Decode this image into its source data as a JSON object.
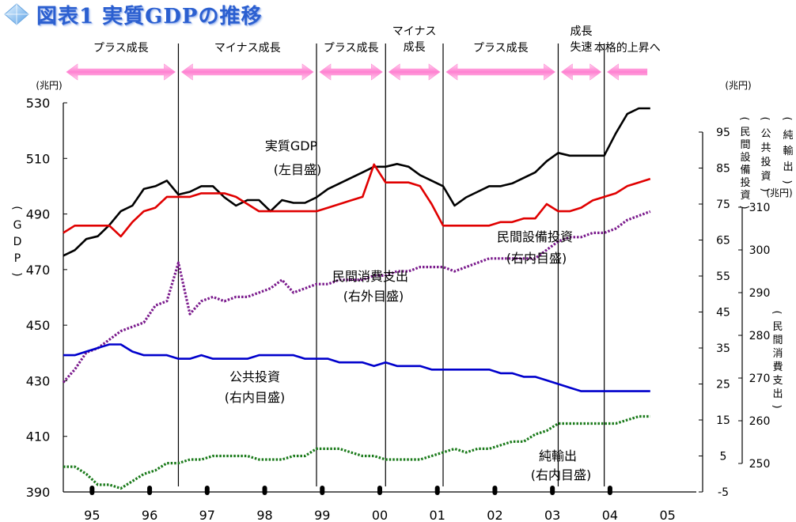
{
  "title": "図表1 実質GDPの推移",
  "phases": [
    {
      "label": "プラス成長",
      "dir": "both",
      "x0": 1995.0,
      "x1": 1997.0
    },
    {
      "label": "マイナス成長",
      "dir": "both",
      "x0": 1997.0,
      "x1": 1999.4
    },
    {
      "label": "プラス成長",
      "dir": "both",
      "x0": 1999.4,
      "x1": 2000.6
    },
    {
      "label": "マイナス\n成長",
      "dir": "both",
      "x0": 2000.6,
      "x1": 2001.6
    },
    {
      "label": "プラス成長",
      "dir": "both",
      "x0": 2001.6,
      "x1": 2003.6
    },
    {
      "label": "成長\n失速",
      "dir": "both",
      "x0": 2003.6,
      "x1": 2004.4
    },
    {
      "label": "本格的上昇へ",
      "dir": "left",
      "x0": 2004.4,
      "x1": 2005.2
    }
  ],
  "series_labels": [
    {
      "name": "gdp",
      "text": "実質GDP",
      "sub": "(左目盛)"
    },
    {
      "name": "consumption",
      "text": "民間消費支出",
      "sub": "(右外目盛)"
    },
    {
      "name": "investment",
      "text": "民間設備投資",
      "sub": "(右内目盛)"
    },
    {
      "name": "public",
      "text": "公共投資",
      "sub": "(右内目盛)"
    },
    {
      "name": "netexport",
      "text": "純輸出",
      "sub": "(右内目盛)"
    }
  ],
  "axes": {
    "left_unit": "(兆円)",
    "left_title": "(GDP)",
    "right_unit": "(兆円)",
    "right_titles": [
      "(民間設備投資)",
      "(公共投資)",
      "(純輸出)"
    ],
    "outer_unit": "(兆円)",
    "outer_title": "(民間消費支出)",
    "left_ticks": [
      "390",
      "410",
      "430",
      "450",
      "470",
      "490",
      "510",
      "530"
    ],
    "right_ticks": [
      "-5",
      "5",
      "15",
      "25",
      "35",
      "45",
      "55",
      "65",
      "75",
      "85",
      "95"
    ],
    "outer_ticks": [
      "250",
      "260",
      "270",
      "280",
      "290",
      "300",
      "310"
    ],
    "x_ticks": [
      "95",
      "96",
      "97",
      "98",
      "99",
      "00",
      "01",
      "02",
      "03",
      "04",
      "05"
    ]
  },
  "chart_data": {
    "type": "line",
    "title": "図表1 実質GDPの推移",
    "x_unit": "year",
    "xlim": [
      1995.0,
      2006.0
    ],
    "ylim_left": [
      390,
      530
    ],
    "ylim_right": [
      -5,
      95
    ],
    "ylim_outer": [
      250,
      310
    ],
    "grid": false,
    "legend": "inline labels",
    "phase_boundaries": [
      1997.0,
      1999.4,
      2000.6,
      2001.6,
      2003.6,
      2004.4
    ],
    "x_markers": [
      1995.5,
      1996.5,
      1997.5,
      1998.5,
      1999.5,
      2000.5,
      2001.5,
      2002.5,
      2003.5,
      2004.5
    ],
    "colors": {
      "gdp": "#000000",
      "investment": "#e00000",
      "consumption": "#7a1a8c",
      "public": "#0000cc",
      "netexport": "#1a7a1a"
    },
    "series": [
      {
        "name": "実質GDP",
        "axis": "left",
        "style": "solid",
        "x": [
          1995.0,
          1995.2,
          1995.4,
          1995.6,
          1995.8,
          1996.0,
          1996.2,
          1996.4,
          1996.6,
          1996.8,
          1997.0,
          1997.2,
          1997.4,
          1997.6,
          1997.8,
          1998.0,
          1998.2,
          1998.4,
          1998.6,
          1998.8,
          1999.0,
          1999.2,
          1999.4,
          1999.6,
          1999.8,
          2000.0,
          2000.2,
          2000.4,
          2000.6,
          2000.8,
          2001.0,
          2001.2,
          2001.4,
          2001.6,
          2001.8,
          2002.0,
          2002.2,
          2002.4,
          2002.6,
          2002.8,
          2003.0,
          2003.2,
          2003.4,
          2003.6,
          2003.8,
          2004.0,
          2004.2,
          2004.4,
          2004.6,
          2004.8,
          2005.0,
          2005.2
        ],
        "y": [
          475,
          477,
          481,
          482,
          486,
          491,
          493,
          499,
          500,
          502,
          497,
          498,
          500,
          500,
          496,
          493,
          495,
          495,
          491,
          495,
          494,
          494,
          496,
          499,
          501,
          503,
          505,
          507,
          507,
          508,
          507,
          504,
          502,
          500,
          493,
          496,
          498,
          500,
          500,
          501,
          503,
          505,
          509,
          512,
          511,
          511,
          511,
          511,
          519,
          526,
          528,
          528
        ]
      },
      {
        "name": "民間設備投資",
        "axis": "right",
        "style": "solid",
        "x": [
          1995.0,
          1995.2,
          1995.4,
          1995.6,
          1995.8,
          1996.0,
          1996.2,
          1996.4,
          1996.6,
          1996.8,
          1997.0,
          1997.2,
          1997.4,
          1997.6,
          1997.8,
          1998.0,
          1998.2,
          1998.4,
          1998.6,
          1998.8,
          1999.0,
          1999.2,
          1999.4,
          1999.6,
          1999.8,
          2000.0,
          2000.2,
          2000.4,
          2000.6,
          2000.8,
          2001.0,
          2001.2,
          2001.4,
          2001.6,
          2001.8,
          2002.0,
          2002.2,
          2002.4,
          2002.6,
          2002.8,
          2003.0,
          2003.2,
          2003.4,
          2003.6,
          2003.8,
          2004.0,
          2004.2,
          2004.4,
          2004.6,
          2004.8,
          2005.0,
          2005.2
        ],
        "y": [
          67,
          69,
          69,
          69,
          69,
          66,
          70,
          73,
          74,
          77,
          77,
          77,
          78,
          78,
          78,
          77,
          75,
          73,
          73,
          73,
          73,
          73,
          73,
          74,
          75,
          76,
          77,
          86,
          81,
          81,
          81,
          80,
          75,
          69,
          69,
          69,
          69,
          69,
          70,
          70,
          71,
          71,
          75,
          73,
          73,
          74,
          76,
          77,
          78,
          80,
          81,
          82
        ]
      },
      {
        "name": "民間消費支出",
        "axis": "outer",
        "style": "dotted",
        "x": [
          1995.0,
          1995.2,
          1995.4,
          1995.6,
          1995.8,
          1996.0,
          1996.2,
          1996.4,
          1996.6,
          1996.8,
          1997.0,
          1997.2,
          1997.4,
          1997.6,
          1997.8,
          1998.0,
          1998.2,
          1998.4,
          1998.6,
          1998.8,
          1999.0,
          1999.2,
          1999.4,
          1999.6,
          1999.8,
          2000.0,
          2000.2,
          2000.4,
          2000.6,
          2000.8,
          2001.0,
          2001.2,
          2001.4,
          2001.6,
          2001.8,
          2002.0,
          2002.2,
          2002.4,
          2002.6,
          2002.8,
          2003.0,
          2003.2,
          2003.4,
          2003.6,
          2003.8,
          2004.0,
          2004.2,
          2004.4,
          2004.6,
          2004.8,
          2005.0,
          2005.2
        ],
        "y": [
          269,
          272,
          276,
          277,
          279,
          281,
          282,
          283,
          287,
          288,
          297,
          285,
          288,
          289,
          288,
          289,
          289,
          290,
          291,
          293,
          290,
          291,
          292,
          292,
          293,
          293,
          293,
          294,
          294,
          295,
          295,
          296,
          296,
          296,
          295,
          296,
          297,
          298,
          298,
          298,
          298,
          298,
          300,
          302,
          303,
          303,
          304,
          304,
          305,
          307,
          308,
          309
        ]
      },
      {
        "name": "公共投資",
        "axis": "right",
        "style": "solid",
        "x": [
          1995.0,
          1995.2,
          1995.4,
          1995.6,
          1995.8,
          1996.0,
          1996.2,
          1996.4,
          1996.6,
          1996.8,
          1997.0,
          1997.2,
          1997.4,
          1997.6,
          1997.8,
          1998.0,
          1998.2,
          1998.4,
          1998.6,
          1998.8,
          1999.0,
          1999.2,
          1999.4,
          1999.6,
          1999.8,
          2000.0,
          2000.2,
          2000.4,
          2000.6,
          2000.8,
          2001.0,
          2001.2,
          2001.4,
          2001.6,
          2001.8,
          2002.0,
          2002.2,
          2002.4,
          2002.6,
          2002.8,
          2003.0,
          2003.2,
          2003.4,
          2003.6,
          2003.8,
          2004.0,
          2004.2,
          2004.4,
          2004.6,
          2004.8,
          2005.0,
          2005.2
        ],
        "y": [
          33,
          33,
          34,
          35,
          36,
          36,
          34,
          33,
          33,
          33,
          32,
          32,
          33,
          32,
          32,
          32,
          32,
          33,
          33,
          33,
          33,
          32,
          32,
          32,
          31,
          31,
          31,
          30,
          31,
          30,
          30,
          30,
          29,
          29,
          29,
          29,
          29,
          29,
          28,
          28,
          27,
          27,
          26,
          25,
          24,
          23,
          23,
          23,
          23,
          23,
          23,
          23
        ]
      },
      {
        "name": "純輸出",
        "axis": "right",
        "style": "dotted",
        "x": [
          1995.0,
          1995.2,
          1995.4,
          1995.6,
          1995.8,
          1996.0,
          1996.2,
          1996.4,
          1996.6,
          1996.8,
          1997.0,
          1997.2,
          1997.4,
          1997.6,
          1997.8,
          1998.0,
          1998.2,
          1998.4,
          1998.6,
          1998.8,
          1999.0,
          1999.2,
          1999.4,
          1999.6,
          1999.8,
          2000.0,
          2000.2,
          2000.4,
          2000.6,
          2000.8,
          2001.0,
          2001.2,
          2001.4,
          2001.6,
          2001.8,
          2002.0,
          2002.2,
          2002.4,
          2002.6,
          2002.8,
          2003.0,
          2003.2,
          2003.4,
          2003.6,
          2003.8,
          2004.0,
          2004.2,
          2004.4,
          2004.6,
          2004.8,
          2005.0,
          2005.2
        ],
        "y": [
          2,
          2,
          0,
          -3,
          -3,
          -4,
          -2,
          0,
          1,
          3,
          3,
          4,
          4,
          5,
          5,
          5,
          5,
          4,
          4,
          4,
          5,
          5,
          7,
          7,
          7,
          6,
          5,
          5,
          4,
          4,
          4,
          4,
          5,
          6,
          7,
          6,
          7,
          7,
          8,
          9,
          9,
          11,
          12,
          14,
          14,
          14,
          14,
          14,
          14,
          15,
          16,
          16
        ]
      }
    ]
  }
}
